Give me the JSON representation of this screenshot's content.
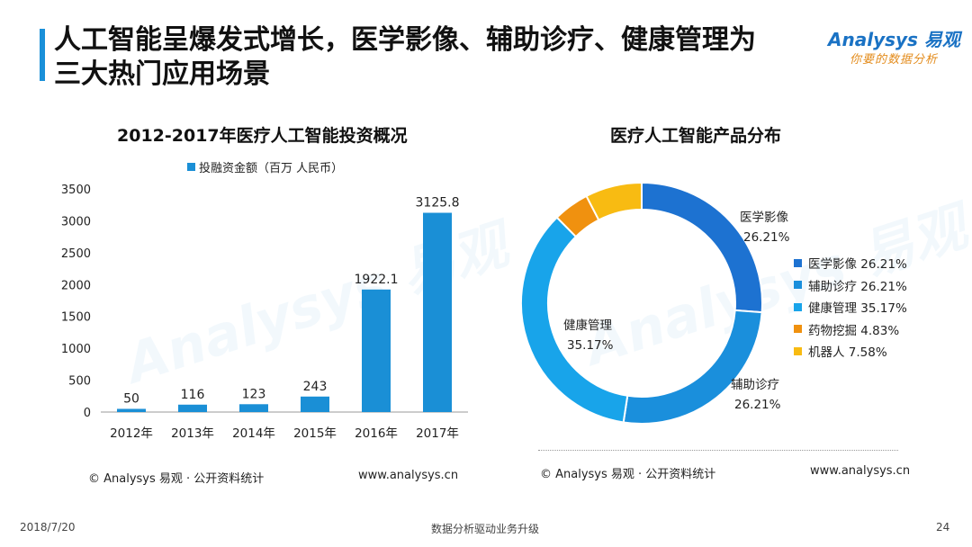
{
  "header": {
    "title_line1": "人工智能呈爆发式增长，医学影像、辅助诊疗、健康管理为",
    "title_line2": "三大热门应用场景",
    "logo_main": "Analysys 易观",
    "logo_sub": "你要的数据分析"
  },
  "colors": {
    "accent": "#1a90d9",
    "bar": "#1a8fd6",
    "logo_blue": "#1a72c4",
    "logo_orange": "#e38b1b"
  },
  "chart_data": [
    {
      "type": "bar",
      "title": "2012-2017年医疗人工智能投资概况",
      "categories": [
        "2012年",
        "2013年",
        "2014年",
        "2015年",
        "2016年",
        "2017年"
      ],
      "series": [
        {
          "name": "投融资金额（百万 人民币）",
          "values": [
            50,
            116,
            123,
            243,
            1922.1,
            3125.8
          ],
          "color": "#1a8fd6"
        }
      ],
      "data_labels": [
        "50",
        "116",
        "123",
        "243",
        "1922.1",
        "3125.8"
      ],
      "ylim": [
        0,
        3500
      ],
      "yticks": [
        0,
        500,
        1000,
        1500,
        2000,
        2500,
        3000,
        3500
      ],
      "legend_position": "top",
      "grid": false
    },
    {
      "type": "pie",
      "variant": "donut",
      "title": "医疗人工智能产品分布",
      "slices": [
        {
          "name": "医学影像",
          "value": 26.21,
          "label": "26.21%",
          "color": "#1d72d1"
        },
        {
          "name": "辅助诊疗",
          "value": 26.21,
          "label": "26.21%",
          "color": "#1a8fdc"
        },
        {
          "name": "健康管理",
          "value": 35.17,
          "label": "35.17%",
          "color": "#18a4ea"
        },
        {
          "name": "药物挖掘",
          "value": 4.83,
          "label": "4.83%",
          "color": "#f0910f"
        },
        {
          "name": "机器人",
          "value": 7.58,
          "label": "7.58%",
          "color": "#f8bb12"
        }
      ],
      "legend_entries": [
        "医学影像 26.21%",
        "辅助诊疗 26.21%",
        "健康管理 35.17%",
        "药物挖掘 4.83%",
        "机器人 7.58%"
      ],
      "legend_position": "right"
    }
  ],
  "footer": {
    "left_source": "© Analysys 易观 · 公开资料统计",
    "left_url": "www.analysys.cn",
    "right_source": "© Analysys 易观 · 公开资料统计",
    "right_url": "www.analysys.cn"
  },
  "bottom": {
    "date": "2018/7/20",
    "tagline": "数据分析驱动业务升级",
    "page_number": "24"
  }
}
